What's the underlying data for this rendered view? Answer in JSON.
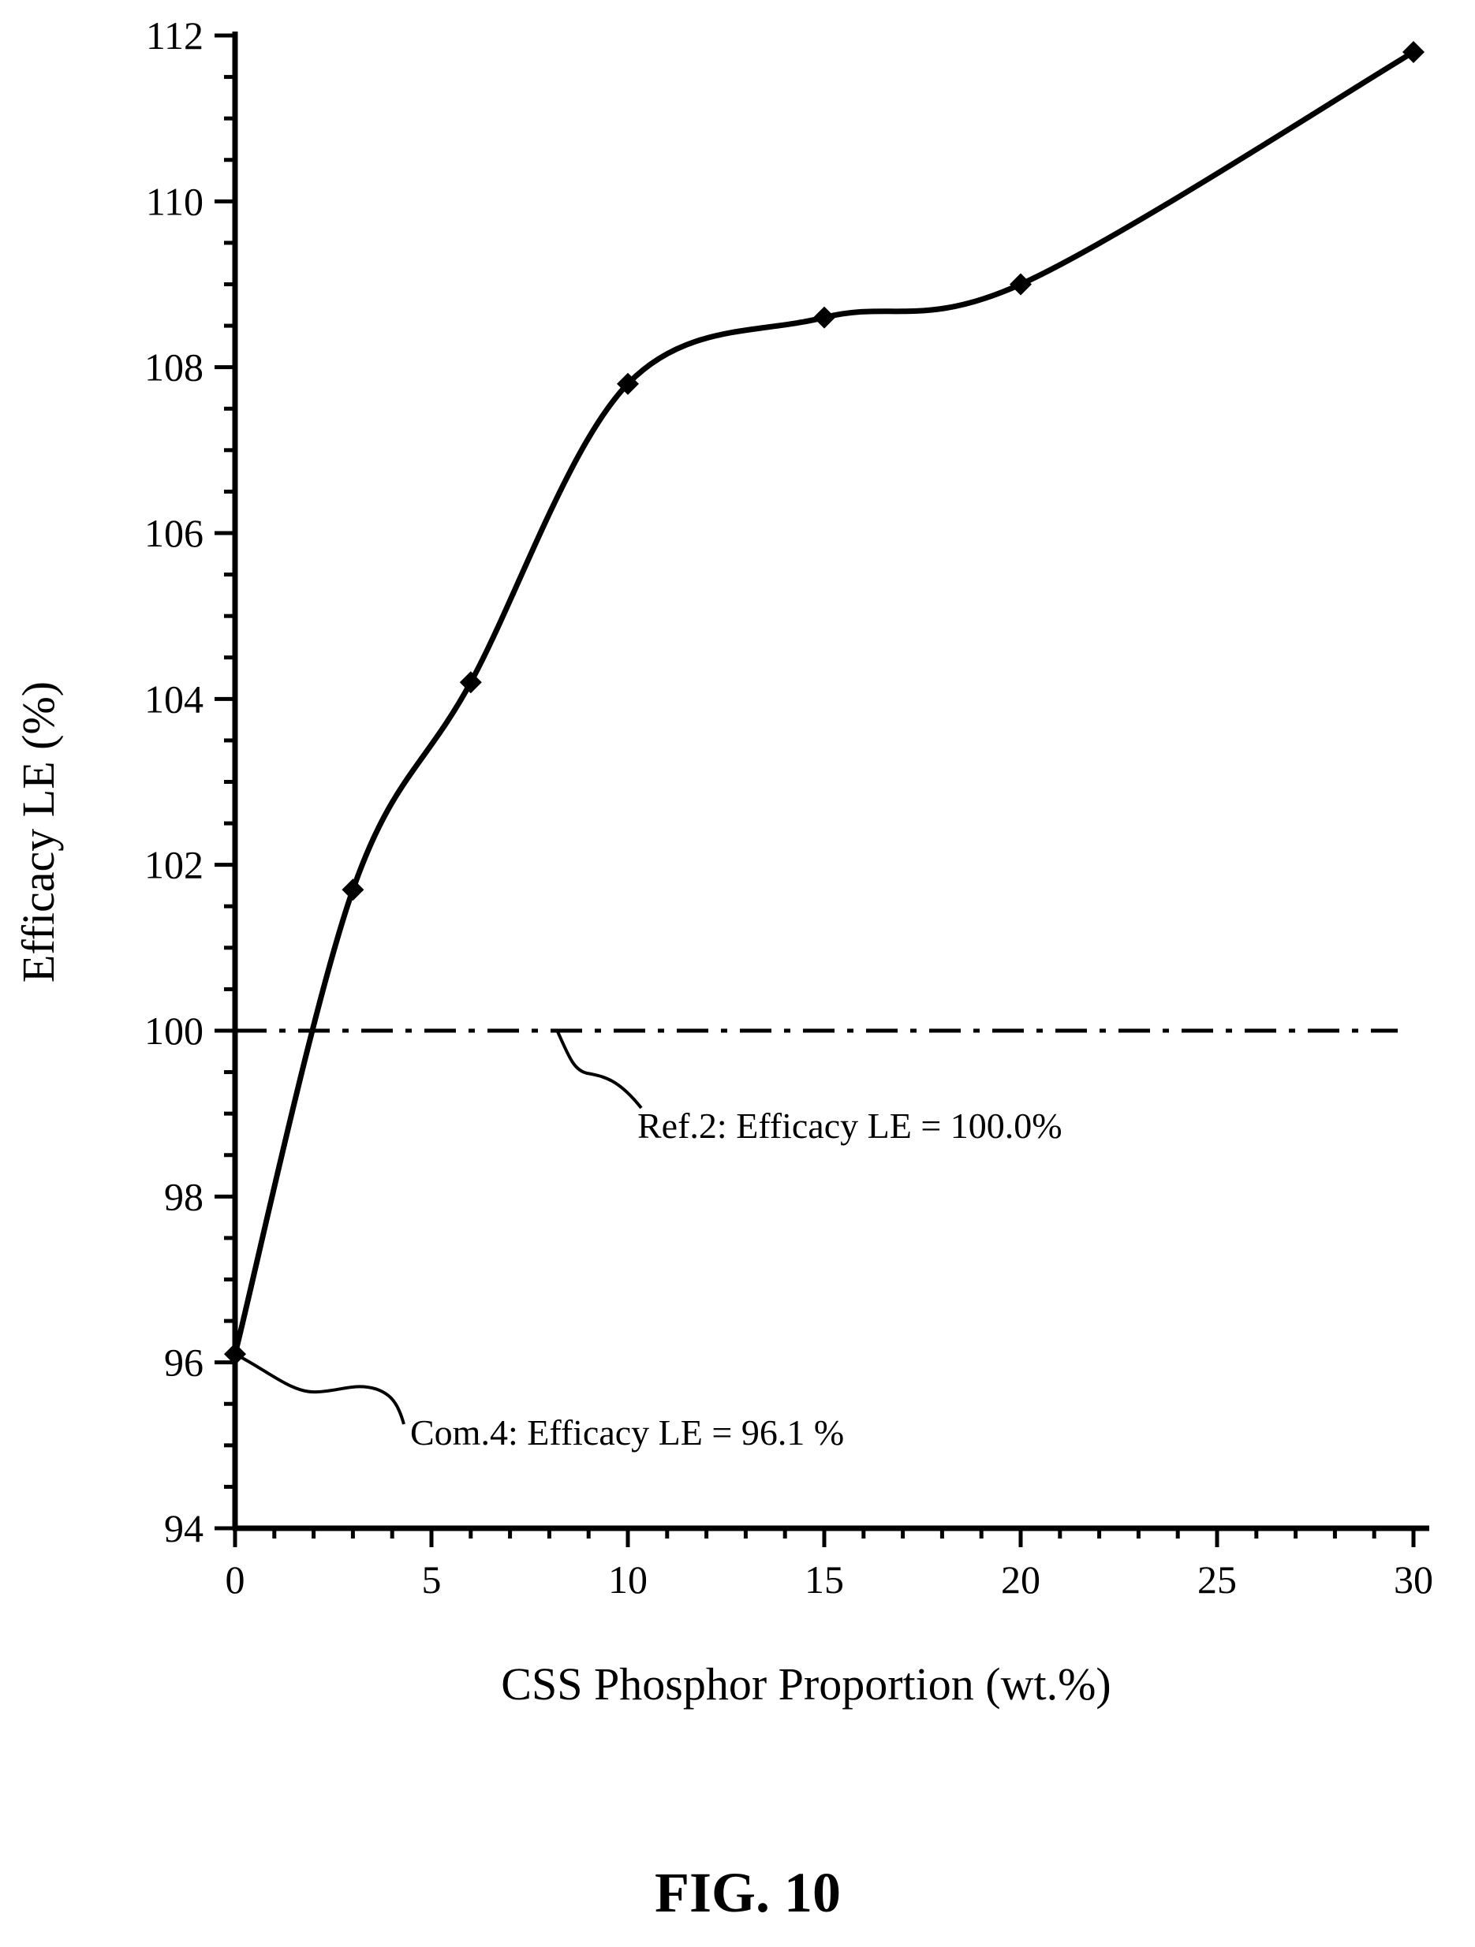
{
  "chart_data": {
    "type": "line",
    "title": "",
    "xlabel": "CSS Phosphor Proportion (wt.%)",
    "ylabel": "Efficacy LE (%)",
    "xlim": [
      0,
      30
    ],
    "ylim": [
      94,
      112
    ],
    "x_ticks": [
      0,
      5,
      10,
      15,
      20,
      25,
      30
    ],
    "y_ticks": [
      94,
      96,
      98,
      100,
      102,
      104,
      106,
      108,
      110,
      112
    ],
    "grid": false,
    "legend": "none",
    "series": [
      {
        "marker": "diamond",
        "smooth": true,
        "x": [
          0,
          3,
          6,
          10,
          15,
          20,
          30
        ],
        "y": [
          96.1,
          101.7,
          104.2,
          107.8,
          108.6,
          109.0,
          111.8
        ]
      }
    ],
    "reference_line": {
      "y": 100,
      "style": "dash-dot"
    },
    "annotations": [
      {
        "text": "Ref.2: Efficacy LE = 100.0%",
        "target_x": 8.2,
        "target_y": 100
      },
      {
        "text": "Com.4: Efficacy LE = 96.1 %",
        "target_x": 0,
        "target_y": 96.1
      }
    ]
  },
  "figure_label": "FIG. 10"
}
